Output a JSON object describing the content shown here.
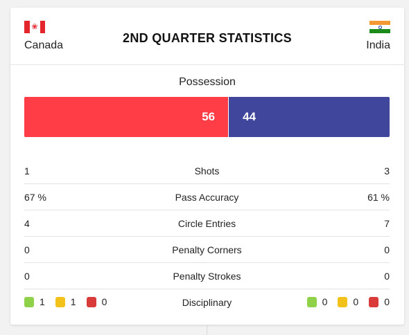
{
  "title": "2ND QUARTER STATISTICS",
  "home": {
    "name": "Canada",
    "flag": "canada-flag",
    "color": "#ff3d47"
  },
  "away": {
    "name": "India",
    "flag": "india-flag",
    "color": "#3f469b"
  },
  "possession": {
    "label": "Possession",
    "home": 56,
    "away": 44
  },
  "stats": [
    {
      "label": "Shots",
      "home": "1",
      "away": "3"
    },
    {
      "label": "Pass Accuracy",
      "home": "67 %",
      "away": "61 %"
    },
    {
      "label": "Circle Entries",
      "home": "4",
      "away": "7"
    },
    {
      "label": "Penalty Corners",
      "home": "0",
      "away": "0"
    },
    {
      "label": "Penalty Strokes",
      "home": "0",
      "away": "0"
    }
  ],
  "disciplinary": {
    "label": "Disciplinary",
    "home": {
      "green": "1",
      "yellow": "1",
      "red": "0"
    },
    "away": {
      "green": "0",
      "yellow": "0",
      "red": "0"
    }
  }
}
